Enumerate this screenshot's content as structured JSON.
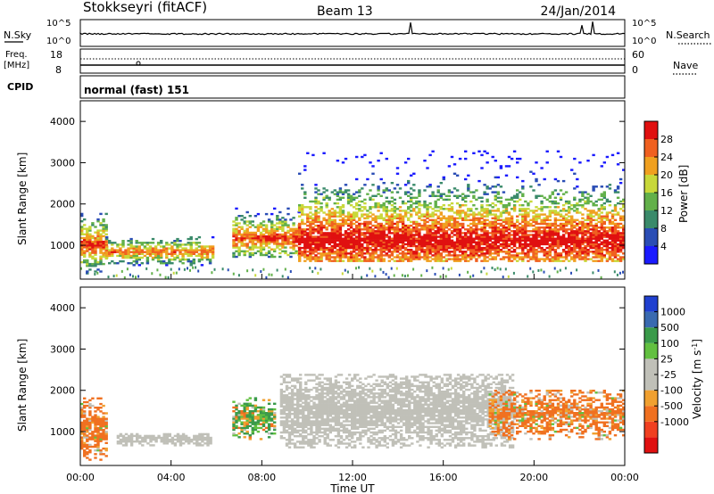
{
  "header": {
    "radar": "Stokkseyri (fitACF)",
    "beam": "Beam 13",
    "date": "24/Jan/2014"
  },
  "noise_panel": {
    "left_label": "N.Sky",
    "right_label": "N.Search",
    "left_ticks": [
      "10^5",
      "10^0"
    ],
    "right_ticks": [
      "10^5",
      "10^0"
    ]
  },
  "freq_panel": {
    "left_label_1": "Freq.",
    "left_label_2": "[MHz]",
    "left_ticks": [
      "18",
      "8"
    ],
    "right_label": "Nave",
    "right_ticks": [
      "60",
      "0"
    ]
  },
  "cpid": {
    "label": "CPID",
    "value": "normal (fast) 151"
  },
  "x_axis": {
    "label": "Time UT",
    "ticks": [
      "00:00",
      "04:00",
      "08:00",
      "12:00",
      "16:00",
      "20:00",
      "00:00"
    ]
  },
  "colors": {
    "power": [
      "#1a1aff",
      "#2a4db5",
      "#3a8a6a",
      "#62b04a",
      "#c8d83a",
      "#f0a020",
      "#f06020",
      "#e01010"
    ],
    "velocity": [
      "#e01010",
      "#f04020",
      "#f07020",
      "#f0a030",
      "#c0c0b8",
      "#c0c0b8",
      "#62c040",
      "#3a9a4a",
      "#3a6ab0",
      "#2040d0"
    ],
    "ground_scatter": "#c0c0b8"
  },
  "chart_data": [
    {
      "type": "heatmap",
      "title": "Power",
      "xlabel": "Time UT",
      "ylabel": "Slant Range [km]",
      "y_ticks": [
        "1000",
        "2000",
        "3000",
        "4000"
      ],
      "colorbar_label": "Power [dB]",
      "colorbar_ticks": [
        "4",
        "8",
        "12",
        "16",
        "20",
        "24",
        "28"
      ],
      "xlim_hours": [
        0,
        24
      ],
      "ylim_km": [
        180,
        4500
      ],
      "zlim": [
        0,
        30
      ],
      "echo_regions": [
        {
          "t0": 0.0,
          "t1": 1.1,
          "r0": 300,
          "r1": 1800,
          "core_km": 1000,
          "peak": 26
        },
        {
          "t0": 1.1,
          "t1": 5.9,
          "r0": 500,
          "r1": 1200,
          "core_km": 830,
          "peak": 24
        },
        {
          "t0": 6.7,
          "t1": 9.6,
          "r0": 700,
          "r1": 1900,
          "core_km": 1150,
          "peak": 26
        },
        {
          "t0": 9.6,
          "t1": 24.0,
          "r0": 600,
          "r1": 3300,
          "core_km": 1100,
          "peak": 30
        }
      ]
    },
    {
      "type": "heatmap",
      "title": "Velocity",
      "xlabel": "Time UT",
      "ylabel": "Slant Range [km]",
      "y_ticks": [
        "1000",
        "2000",
        "3000",
        "4000"
      ],
      "colorbar_label": "Velocity [m s^-1]",
      "colorbar_ticks": [
        "1000",
        "500",
        "100",
        "25",
        "-25",
        "-100",
        "-500",
        "-1000"
      ],
      "xlim_hours": [
        0,
        24
      ],
      "ylim_km": [
        180,
        4500
      ],
      "zlim": [
        -1000,
        1000
      ],
      "ground_scatter_regions": [
        {
          "t0": 1.6,
          "t1": 5.8,
          "r0": 650,
          "r1": 950
        },
        {
          "t0": 8.8,
          "t1": 19.0,
          "r0": 600,
          "r1": 2400
        }
      ],
      "echo_regions": [
        {
          "t0": 0.0,
          "t1": 1.1,
          "r0": 300,
          "r1": 1800,
          "vmean": -200
        },
        {
          "t0": 6.7,
          "t1": 8.6,
          "r0": 800,
          "r1": 1800,
          "vmean": 100
        },
        {
          "t0": 18.0,
          "t1": 24.0,
          "r0": 800,
          "r1": 2000,
          "vmean": -200
        }
      ]
    }
  ]
}
